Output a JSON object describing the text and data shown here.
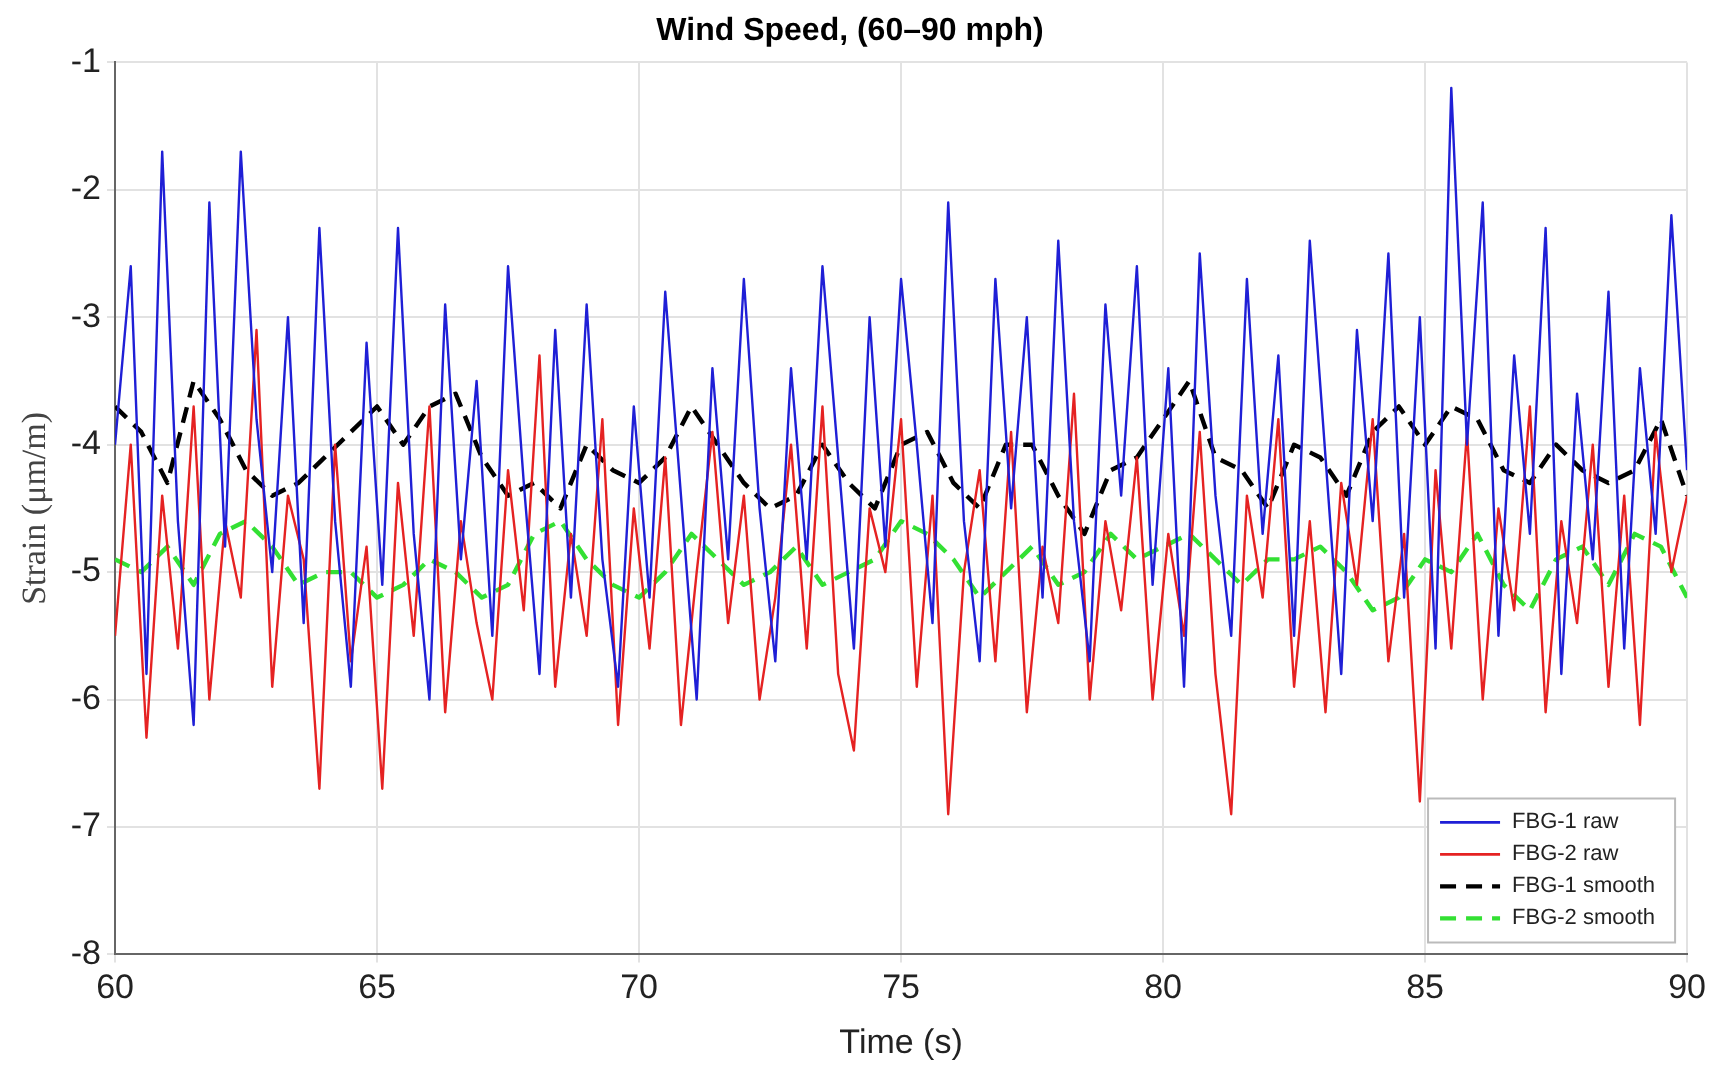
{
  "chart_data": {
    "type": "line",
    "title": "Wind Speed, (60–90 mph)",
    "xlabel": "Time (s)",
    "ylabel": "Strain (μm/m)",
    "xlim": [
      60,
      90
    ],
    "xticks": [
      60,
      65,
      70,
      75,
      80,
      85,
      90
    ],
    "ylim": [
      -8,
      -1
    ],
    "yticks": [
      -8,
      -7,
      -6,
      -5,
      -4,
      -3,
      -2,
      -1
    ],
    "grid": true,
    "legend": "bottom right",
    "marker": "none",
    "x": [
      60,
      60.3,
      60.6,
      60.9,
      61.2,
      61.5,
      61.8,
      62.1,
      62.4,
      62.7,
      63,
      63.3,
      63.6,
      63.9,
      64.2,
      64.5,
      64.8,
      65.1,
      65.4,
      65.7,
      66,
      66.3,
      66.6,
      66.9,
      67.2,
      67.5,
      67.8,
      68.1,
      68.4,
      68.7,
      69,
      69.3,
      69.6,
      69.9,
      70.2,
      70.5,
      70.8,
      71.1,
      71.4,
      71.7,
      72,
      72.3,
      72.6,
      72.9,
      73.2,
      73.5,
      73.8,
      74.1,
      74.4,
      74.7,
      75,
      75.3,
      75.6,
      75.9,
      76.2,
      76.5,
      76.8,
      77.1,
      77.4,
      77.7,
      78,
      78.3,
      78.6,
      78.9,
      79.2,
      79.5,
      79.8,
      80.1,
      80.4,
      80.7,
      81,
      81.3,
      81.6,
      81.9,
      82.2,
      82.5,
      82.8,
      83.1,
      83.4,
      83.7,
      84,
      84.3,
      84.6,
      84.9,
      85.2,
      85.5,
      85.8,
      86.1,
      86.4,
      86.7,
      87,
      87.3,
      87.6,
      87.9,
      88.2,
      88.5,
      88.8,
      89.1,
      89.4,
      89.7,
      90
    ],
    "series": [
      {
        "name": "FBG-1 raw",
        "color": "#1f1fd6",
        "line_style": "solid",
        "values": [
          -4.0,
          -2.6,
          -5.8,
          -1.7,
          -4.6,
          -6.2,
          -2.1,
          -4.8,
          -1.7,
          -3.8,
          -5.0,
          -3.0,
          -5.4,
          -2.3,
          -4.6,
          -5.9,
          -3.2,
          -5.1,
          -2.3,
          -4.7,
          -6.0,
          -2.9,
          -4.9,
          -3.5,
          -5.5,
          -2.6,
          -4.3,
          -5.8,
          -3.1,
          -5.2,
          -2.9,
          -4.9,
          -5.9,
          -3.7,
          -5.2,
          -2.8,
          -4.4,
          -6.0,
          -3.4,
          -4.9,
          -2.7,
          -4.5,
          -5.7,
          -3.4,
          -4.9,
          -2.6,
          -4.1,
          -5.6,
          -3.0,
          -4.8,
          -2.7,
          -4.0,
          -5.4,
          -2.1,
          -4.6,
          -5.7,
          -2.7,
          -4.5,
          -3.0,
          -5.2,
          -2.4,
          -4.6,
          -5.7,
          -2.9,
          -4.4,
          -2.6,
          -5.1,
          -3.4,
          -5.9,
          -2.5,
          -4.4,
          -5.5,
          -2.7,
          -4.7,
          -3.3,
          -5.5,
          -2.4,
          -4.1,
          -5.8,
          -3.1,
          -4.6,
          -2.5,
          -5.2,
          -3.0,
          -5.6,
          -1.2,
          -4.0,
          -2.1,
          -5.5,
          -3.3,
          -4.7,
          -2.3,
          -5.8,
          -3.6,
          -4.9,
          -2.8,
          -5.6,
          -3.4,
          -4.7,
          -2.2,
          -4.2
        ]
      },
      {
        "name": "FBG-2 raw",
        "color": "#e52222",
        "line_style": "solid",
        "values": [
          -5.5,
          -4.0,
          -6.3,
          -4.4,
          -5.6,
          -3.7,
          -6.0,
          -4.6,
          -5.2,
          -3.1,
          -5.9,
          -4.4,
          -4.9,
          -6.7,
          -4.0,
          -5.7,
          -4.8,
          -6.7,
          -4.3,
          -5.5,
          -3.7,
          -6.1,
          -4.6,
          -5.4,
          -6.0,
          -4.2,
          -5.3,
          -3.3,
          -5.9,
          -4.7,
          -5.5,
          -3.8,
          -6.2,
          -4.5,
          -5.6,
          -4.1,
          -6.2,
          -5.0,
          -3.9,
          -5.4,
          -4.4,
          -6.0,
          -5.2,
          -4.0,
          -5.6,
          -3.7,
          -5.8,
          -6.4,
          -4.5,
          -5.0,
          -3.8,
          -5.9,
          -4.4,
          -6.9,
          -5.0,
          -4.2,
          -5.7,
          -3.9,
          -6.1,
          -4.8,
          -5.4,
          -3.6,
          -6.0,
          -4.6,
          -5.3,
          -4.1,
          -6.0,
          -4.7,
          -5.5,
          -3.9,
          -5.8,
          -6.9,
          -4.4,
          -5.2,
          -3.8,
          -5.9,
          -4.6,
          -6.1,
          -4.3,
          -5.1,
          -3.8,
          -5.7,
          -4.7,
          -6.8,
          -4.2,
          -5.6,
          -3.9,
          -6.0,
          -4.5,
          -5.3,
          -3.7,
          -6.1,
          -4.6,
          -5.4,
          -4.0,
          -5.9,
          -4.4,
          -6.2,
          -3.9,
          -5.0,
          -4.4
        ]
      },
      {
        "name": "FBG-1 smooth",
        "color": "#000000",
        "line_style": "dashed",
        "x": [
          60,
          60.5,
          61,
          61.5,
          62,
          62.5,
          63,
          63.5,
          64,
          64.5,
          65,
          65.5,
          66,
          66.5,
          67,
          67.5,
          68,
          68.5,
          69,
          69.5,
          70,
          70.5,
          71,
          71.5,
          72,
          72.5,
          73,
          73.5,
          74,
          74.5,
          75,
          75.5,
          76,
          76.5,
          77,
          77.5,
          78,
          78.5,
          79,
          79.5,
          80,
          80.5,
          81,
          81.5,
          82,
          82.5,
          83,
          83.5,
          84,
          84.5,
          85,
          85.5,
          86,
          86.5,
          87,
          87.5,
          88,
          88.5,
          89,
          89.5,
          90
        ],
        "values": [
          -3.7,
          -3.9,
          -4.3,
          -3.5,
          -3.8,
          -4.2,
          -4.4,
          -4.3,
          -4.1,
          -3.9,
          -3.7,
          -4.0,
          -3.7,
          -3.6,
          -4.1,
          -4.4,
          -4.3,
          -4.5,
          -4.0,
          -4.2,
          -4.3,
          -4.1,
          -3.7,
          -4.0,
          -4.3,
          -4.5,
          -4.4,
          -4.0,
          -4.3,
          -4.5,
          -4.0,
          -3.9,
          -4.3,
          -4.5,
          -4.0,
          -4.0,
          -4.4,
          -4.7,
          -4.2,
          -4.1,
          -3.8,
          -3.5,
          -4.1,
          -4.2,
          -4.5,
          -4.0,
          -4.1,
          -4.4,
          -3.9,
          -3.7,
          -4.0,
          -3.7,
          -3.8,
          -4.2,
          -4.3,
          -4.0,
          -4.2,
          -4.3,
          -4.2,
          -3.8,
          -4.4
        ]
      },
      {
        "name": "FBG-2 smooth",
        "color": "#33e033",
        "line_style": "dashed",
        "x": [
          60,
          60.5,
          61,
          61.5,
          62,
          62.5,
          63,
          63.5,
          64,
          64.5,
          65,
          65.5,
          66,
          66.5,
          67,
          67.5,
          68,
          68.5,
          69,
          69.5,
          70,
          70.5,
          71,
          71.5,
          72,
          72.5,
          73,
          73.5,
          74,
          74.5,
          75,
          75.5,
          76,
          76.5,
          77,
          77.5,
          78,
          78.5,
          79,
          79.5,
          80,
          80.5,
          81,
          81.5,
          82,
          82.5,
          83,
          83.5,
          84,
          84.5,
          85,
          85.5,
          86,
          86.5,
          87,
          87.5,
          88,
          88.5,
          89,
          89.5,
          90
        ],
        "values": [
          -4.9,
          -5.0,
          -4.8,
          -5.1,
          -4.7,
          -4.6,
          -4.8,
          -5.1,
          -5.0,
          -5.0,
          -5.2,
          -5.1,
          -4.9,
          -5.0,
          -5.2,
          -5.1,
          -4.7,
          -4.6,
          -4.9,
          -5.1,
          -5.2,
          -5.0,
          -4.7,
          -4.9,
          -5.1,
          -5.0,
          -4.8,
          -5.1,
          -5.0,
          -4.9,
          -4.6,
          -4.7,
          -4.9,
          -5.2,
          -5.0,
          -4.8,
          -5.1,
          -5.0,
          -4.7,
          -4.9,
          -4.8,
          -4.7,
          -4.9,
          -5.1,
          -4.9,
          -4.9,
          -4.8,
          -5.0,
          -5.3,
          -5.2,
          -4.9,
          -5.0,
          -4.7,
          -5.1,
          -5.3,
          -4.9,
          -4.8,
          -5.1,
          -4.7,
          -4.8,
          -5.2
        ]
      }
    ]
  }
}
